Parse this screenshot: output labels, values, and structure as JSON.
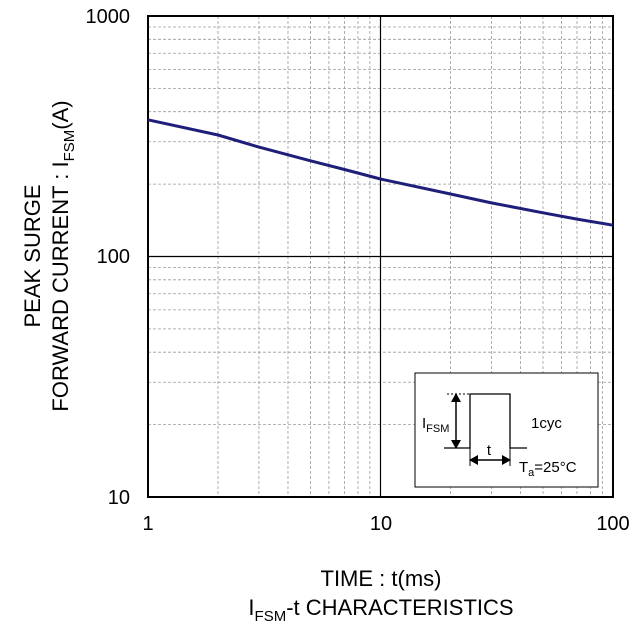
{
  "chart_data": {
    "type": "line",
    "x_scale": "log",
    "y_scale": "log",
    "xlim": [
      1,
      100
    ],
    "ylim": [
      10,
      1000
    ],
    "x_ticks": [
      "1",
      "10",
      "100"
    ],
    "y_ticks": [
      "10",
      "100",
      "1000"
    ],
    "grid": "major and minor",
    "xlabel": "TIME : t(ms)",
    "ylabel_line1": "PEAK SURGE",
    "ylabel_line2_prefix": "FORWARD CURRENT : I",
    "ylabel_line2_sub": "FSM",
    "ylabel_line2_suffix": "(A)",
    "caption_prefix": "I",
    "caption_sub": "FSM",
    "caption_suffix": "-t CHARACTERISTICS",
    "series_color": "#1f1f7a",
    "series": [
      {
        "x": [
          1,
          2,
          3,
          5,
          7,
          10,
          20,
          30,
          50,
          70,
          100
        ],
        "y": [
          370,
          320,
          285,
          250,
          230,
          210,
          182,
          167,
          152,
          143,
          135
        ]
      }
    ],
    "inset": {
      "label_prefix": "I",
      "label_sub": "FSM",
      "t_label": "t",
      "cycle_label": "1cyc",
      "temp_prefix": "T",
      "temp_sub": "a",
      "temp_suffix": "=25°C"
    }
  }
}
